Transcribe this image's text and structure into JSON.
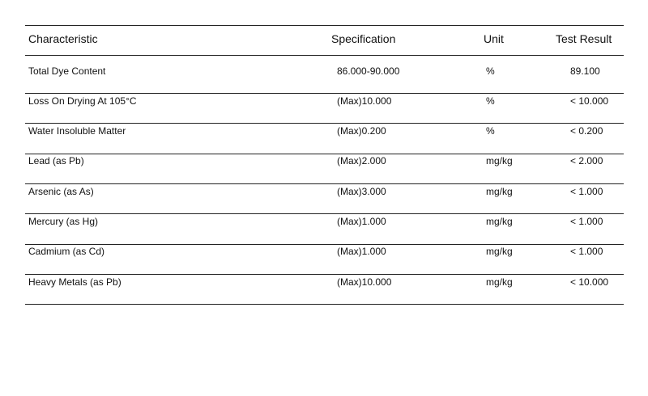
{
  "table": {
    "headers": [
      "Characteristic",
      "Specification",
      "Unit",
      "Test Result"
    ],
    "rows": [
      [
        "Total Dye Content",
        "86.000-90.000",
        "%",
        "89.100"
      ],
      [
        "Loss On Drying At 105°C",
        "(Max)10.000",
        "%",
        "< 10.000"
      ],
      [
        "Water Insoluble Matter",
        "(Max)0.200",
        "%",
        "< 0.200"
      ],
      [
        "Lead (as Pb)",
        "(Max)2.000",
        "mg/kg",
        "< 2.000"
      ],
      [
        "Arsenic (as As)",
        "(Max)3.000",
        "mg/kg",
        "< 1.000"
      ],
      [
        "Mercury (as Hg)",
        "(Max)1.000",
        "mg/kg",
        "< 1.000"
      ],
      [
        "Cadmium (as Cd)",
        "(Max)1.000",
        "mg/kg",
        "< 1.000"
      ],
      [
        "Heavy Metals (as Pb)",
        "(Max)10.000",
        "mg/kg",
        "< 10.000"
      ]
    ]
  }
}
